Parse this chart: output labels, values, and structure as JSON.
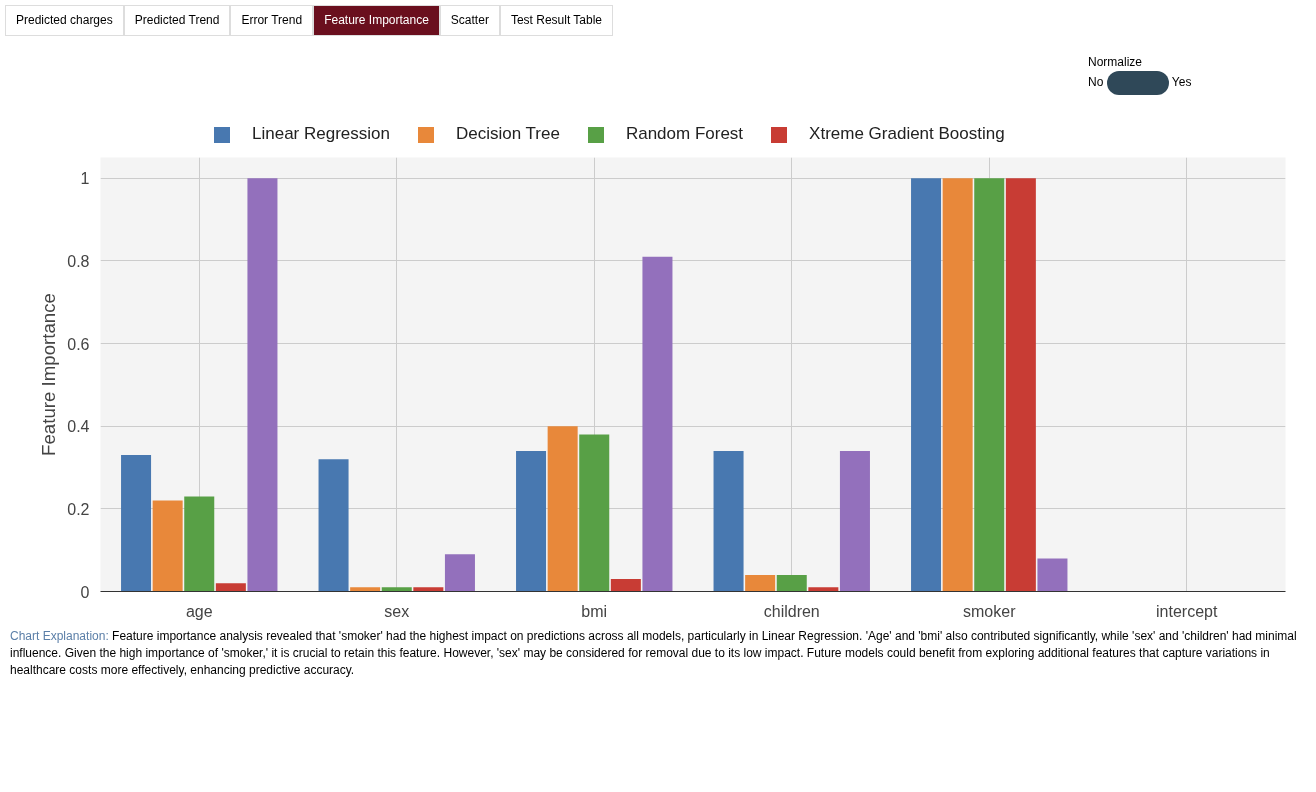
{
  "chart_data": {
    "type": "bar",
    "ylabel": "Feature Importance",
    "categories": [
      "age",
      "sex",
      "bmi",
      "children",
      "smoker",
      "intercept"
    ],
    "series": [
      {
        "name": "Linear Regression",
        "color": "#4878b0",
        "values": [
          0.33,
          0.32,
          0.34,
          0.34,
          1.0,
          null
        ]
      },
      {
        "name": "Decision Tree",
        "color": "#e8883a",
        "values": [
          0.22,
          0.01,
          0.4,
          0.04,
          1.0,
          null
        ]
      },
      {
        "name": "Random Forest",
        "color": "#58a046",
        "values": [
          0.23,
          0.01,
          0.38,
          0.04,
          1.0,
          null
        ]
      },
      {
        "name": "Xtreme Gradient Boosting",
        "color": "#c83c34",
        "values": [
          0.02,
          0.01,
          0.03,
          0.01,
          1.0,
          null
        ]
      },
      {
        "color": "#9370bc",
        "values": [
          1.0,
          0.09,
          0.81,
          0.34,
          0.08,
          null
        ]
      }
    ],
    "ylim": [
      0,
      1.05
    ],
    "yticks": [
      0,
      0.2,
      0.4,
      0.6,
      0.8,
      1
    ],
    "grid": true,
    "legend": "top",
    "annotations": [
      "Predicted charges",
      "Predicted Trend",
      "Error Trend",
      "Feature Importance",
      "Scatter",
      "Test Result Table",
      "Normalize",
      "No",
      "Yes",
      "Chart Explanation:",
      "Feature importance analysis revealed that 'smoker' had the highest impact on predictions across all models, particularly in Linear Regression. 'Age' and 'bmi' also contributed significantly, while 'sex' and 'children' had minimal influence. Given the high importance of 'smoker,' it is crucial to retain this feature. However, 'sex' may be considered for removal due to its low impact. Future models could benefit from exploring additional features that capture variations in healthcare costs more effectively, enhancing predictive accuracy."
    ]
  }
}
